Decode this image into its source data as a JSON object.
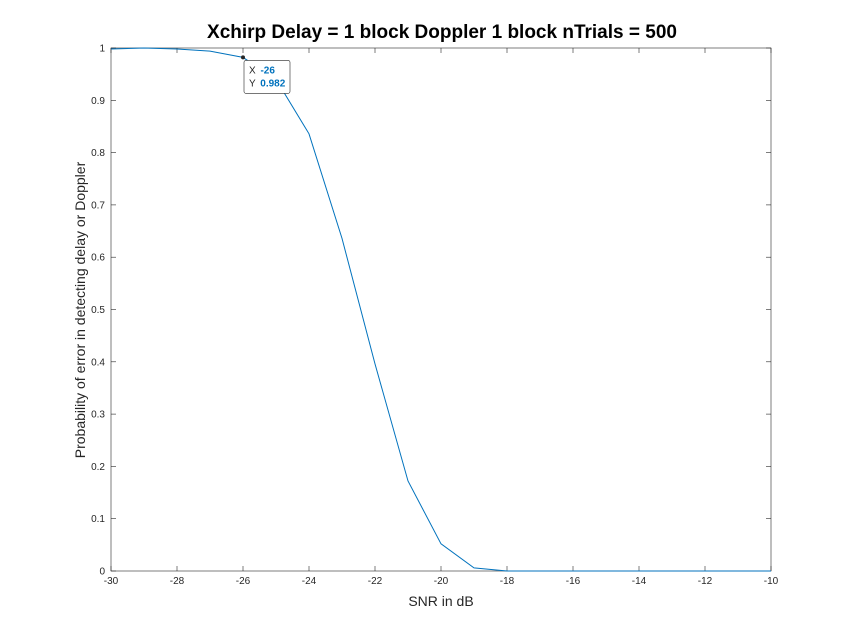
{
  "chart_data": {
    "type": "line",
    "title": "Xchirp Delay = 1 block Doppler 1 block nTrials = 500",
    "xlabel": "SNR in dB",
    "ylabel": "Probability of error in detecting delay or Doppler",
    "xlim": [
      -30,
      -10
    ],
    "ylim": [
      0,
      1
    ],
    "xticks": [
      "-30",
      "-28",
      "-26",
      "-24",
      "-22",
      "-20",
      "-18",
      "-16",
      "-14",
      "-12",
      "-10"
    ],
    "yticks": [
      "0",
      "0.1",
      "0.2",
      "0.3",
      "0.4",
      "0.5",
      "0.6",
      "0.7",
      "0.8",
      "0.9",
      "1"
    ],
    "grid": false,
    "series": [
      {
        "color": "#0072bd",
        "x": [
          -30,
          -29,
          -28,
          -27,
          -26,
          -25,
          -24,
          -23,
          -22,
          -21,
          -20,
          -19,
          -18,
          -17,
          -16,
          -15,
          -14,
          -13,
          -12,
          -11,
          -10
        ],
        "y": [
          0.998,
          1.0,
          0.998,
          0.994,
          0.982,
          0.94,
          0.836,
          0.636,
          0.396,
          0.172,
          0.052,
          0.006,
          0,
          0,
          0,
          0,
          0,
          0,
          0,
          0,
          0
        ]
      }
    ],
    "datatip": {
      "x_label": "X",
      "x_value": "-26",
      "y_label": "Y",
      "y_value": "0.982",
      "x": -26,
      "y": 0.982
    }
  }
}
